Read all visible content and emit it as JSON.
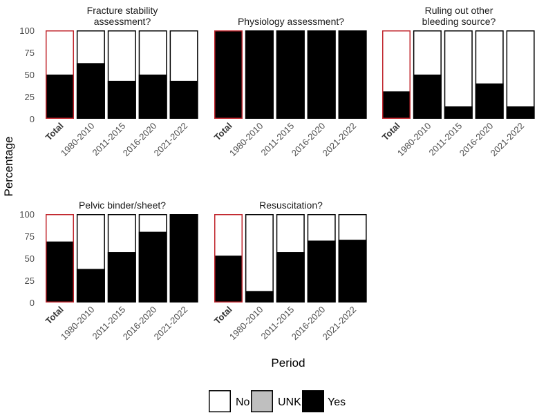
{
  "chart_data": {
    "type": "bar",
    "stacked": true,
    "xlabel": "Period",
    "ylabel": "Percentage",
    "ylim": [
      0,
      100
    ],
    "yticks": [
      0,
      25,
      50,
      75,
      100
    ],
    "categories": [
      "Total",
      "1980-2010",
      "2011-2015",
      "2016-2020",
      "2021-2022"
    ],
    "highlight_category": "Total",
    "colors": {
      "No": "#ffffff",
      "UNK": "#bfbfbf",
      "Yes": "#000000",
      "bar_outline": "#000000",
      "highlight_outline": "#c0242b"
    },
    "legend": {
      "position": "bottom",
      "entries": [
        {
          "label": "No",
          "color": "#ffffff"
        },
        {
          "label": "UNK",
          "color": "#bfbfbf"
        },
        {
          "label": "Yes",
          "color": "#000000"
        }
      ]
    },
    "panels": [
      {
        "title_lines": [
          "Fracture stability",
          "assessment?"
        ],
        "yes": [
          50,
          63,
          43,
          50,
          43
        ],
        "unk": [
          0,
          0,
          0,
          0,
          0
        ]
      },
      {
        "title_lines": [
          "Physiology assessment?"
        ],
        "yes": [
          100,
          100,
          100,
          100,
          100
        ],
        "unk": [
          0,
          0,
          0,
          0,
          0
        ]
      },
      {
        "title_lines": [
          "Ruling out other",
          "bleeding source?"
        ],
        "yes": [
          31,
          50,
          14,
          40,
          14
        ],
        "unk": [
          0,
          0,
          0,
          0,
          0
        ]
      },
      {
        "title_lines": [
          "Pelvic binder/sheet?"
        ],
        "yes": [
          69,
          38,
          57,
          80,
          100
        ],
        "unk": [
          0,
          0,
          0,
          0,
          0
        ]
      },
      {
        "title_lines": [
          "Resuscitation?"
        ],
        "yes": [
          53,
          13,
          57,
          70,
          71
        ],
        "unk": [
          0,
          0,
          0,
          0,
          0
        ]
      }
    ]
  }
}
